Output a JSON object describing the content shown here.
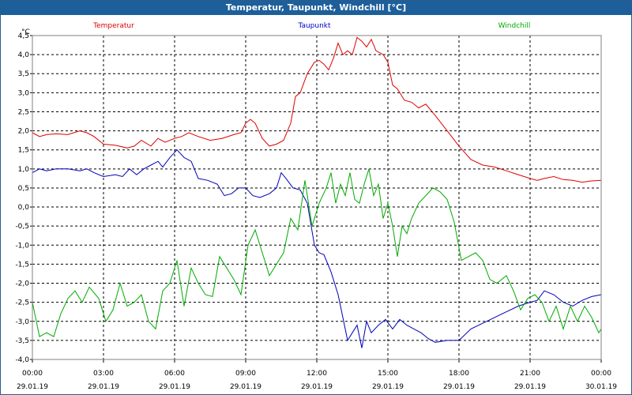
{
  "window": {
    "title": "Temperatur, Taupunkt, Windchill [°C]"
  },
  "chart_data": {
    "type": "line",
    "title": "Temperatur, Taupunkt, Windchill [°C]",
    "ylabel": "°C",
    "ylim": [
      -4.0,
      4.5
    ],
    "xlim": [
      0,
      24
    ],
    "yticks": [
      "4,5",
      "4,0",
      "3,5",
      "3,0",
      "2,5",
      "2,0",
      "1,5",
      "1,0",
      "0,5",
      "0,0",
      "-0,5",
      "-1,0",
      "-1,5",
      "-2,0",
      "-2,5",
      "-3,0",
      "-3,5",
      "-4,0"
    ],
    "xticks": [
      {
        "time": "00:00",
        "date": "29.01.19"
      },
      {
        "time": "03:00",
        "date": "29.01.19"
      },
      {
        "time": "06:00",
        "date": "29.01.19"
      },
      {
        "time": "09:00",
        "date": "29.01.19"
      },
      {
        "time": "12:00",
        "date": "29.01.19"
      },
      {
        "time": "15:00",
        "date": "29.01.19"
      },
      {
        "time": "18:00",
        "date": "29.01.19"
      },
      {
        "time": "21:00",
        "date": "29.01.19"
      },
      {
        "time": "00:00",
        "date": "30.01.19"
      }
    ],
    "grid": true,
    "legend_position": "top",
    "series": [
      {
        "name": "Temperatur",
        "color": "#dd0000",
        "points": [
          [
            0,
            1.95
          ],
          [
            0.3,
            1.85
          ],
          [
            0.6,
            1.9
          ],
          [
            1.0,
            1.92
          ],
          [
            1.5,
            1.9
          ],
          [
            2.0,
            2.0
          ],
          [
            2.3,
            1.95
          ],
          [
            2.6,
            1.85
          ],
          [
            3.0,
            1.65
          ],
          [
            3.5,
            1.62
          ],
          [
            4.0,
            1.55
          ],
          [
            4.3,
            1.6
          ],
          [
            4.6,
            1.75
          ],
          [
            5.0,
            1.6
          ],
          [
            5.3,
            1.8
          ],
          [
            5.6,
            1.7
          ],
          [
            6.0,
            1.8
          ],
          [
            6.3,
            1.85
          ],
          [
            6.6,
            1.95
          ],
          [
            7.0,
            1.85
          ],
          [
            7.5,
            1.75
          ],
          [
            8.0,
            1.8
          ],
          [
            8.5,
            1.9
          ],
          [
            8.8,
            1.95
          ],
          [
            9.0,
            2.2
          ],
          [
            9.2,
            2.3
          ],
          [
            9.4,
            2.2
          ],
          [
            9.7,
            1.8
          ],
          [
            10.0,
            1.6
          ],
          [
            10.3,
            1.65
          ],
          [
            10.6,
            1.75
          ],
          [
            10.9,
            2.2
          ],
          [
            11.1,
            2.9
          ],
          [
            11.3,
            3.0
          ],
          [
            11.6,
            3.5
          ],
          [
            11.9,
            3.8
          ],
          [
            12.1,
            3.85
          ],
          [
            12.3,
            3.75
          ],
          [
            12.5,
            3.6
          ],
          [
            12.7,
            3.9
          ],
          [
            12.9,
            4.3
          ],
          [
            13.1,
            4.0
          ],
          [
            13.3,
            4.1
          ],
          [
            13.5,
            4.0
          ],
          [
            13.7,
            4.45
          ],
          [
            13.9,
            4.35
          ],
          [
            14.1,
            4.2
          ],
          [
            14.3,
            4.4
          ],
          [
            14.5,
            4.1
          ],
          [
            14.8,
            4.0
          ],
          [
            15.0,
            3.8
          ],
          [
            15.2,
            3.2
          ],
          [
            15.4,
            3.1
          ],
          [
            15.7,
            2.8
          ],
          [
            16.0,
            2.75
          ],
          [
            16.3,
            2.6
          ],
          [
            16.6,
            2.7
          ],
          [
            17.0,
            2.4
          ],
          [
            17.5,
            2.0
          ],
          [
            18.0,
            1.6
          ],
          [
            18.5,
            1.25
          ],
          [
            19.0,
            1.1
          ],
          [
            19.5,
            1.05
          ],
          [
            20.0,
            0.95
          ],
          [
            20.5,
            0.85
          ],
          [
            21.0,
            0.75
          ],
          [
            21.3,
            0.7
          ],
          [
            21.6,
            0.75
          ],
          [
            22.0,
            0.8
          ],
          [
            22.4,
            0.72
          ],
          [
            22.8,
            0.7
          ],
          [
            23.2,
            0.65
          ],
          [
            23.5,
            0.68
          ],
          [
            24.0,
            0.7
          ]
        ]
      },
      {
        "name": "Taupunkt",
        "color": "#0000bb",
        "points": [
          [
            0,
            0.9
          ],
          [
            0.3,
            1.0
          ],
          [
            0.6,
            0.95
          ],
          [
            1.0,
            1.0
          ],
          [
            1.5,
            1.0
          ],
          [
            2.0,
            0.95
          ],
          [
            2.3,
            1.0
          ],
          [
            2.6,
            0.9
          ],
          [
            3.0,
            0.8
          ],
          [
            3.5,
            0.85
          ],
          [
            3.8,
            0.8
          ],
          [
            4.1,
            1.0
          ],
          [
            4.4,
            0.85
          ],
          [
            4.7,
            1.0
          ],
          [
            5.0,
            1.1
          ],
          [
            5.3,
            1.2
          ],
          [
            5.5,
            1.05
          ],
          [
            5.8,
            1.3
          ],
          [
            6.1,
            1.5
          ],
          [
            6.4,
            1.3
          ],
          [
            6.7,
            1.2
          ],
          [
            7.0,
            0.75
          ],
          [
            7.4,
            0.7
          ],
          [
            7.8,
            0.6
          ],
          [
            8.1,
            0.3
          ],
          [
            8.4,
            0.35
          ],
          [
            8.7,
            0.5
          ],
          [
            9.0,
            0.5
          ],
          [
            9.3,
            0.3
          ],
          [
            9.6,
            0.25
          ],
          [
            10.0,
            0.35
          ],
          [
            10.3,
            0.5
          ],
          [
            10.5,
            0.9
          ],
          [
            10.7,
            0.75
          ],
          [
            11.0,
            0.5
          ],
          [
            11.3,
            0.45
          ],
          [
            11.6,
            0.1
          ],
          [
            11.9,
            -1.0
          ],
          [
            12.1,
            -1.2
          ],
          [
            12.3,
            -1.25
          ],
          [
            12.6,
            -1.7
          ],
          [
            12.9,
            -2.3
          ],
          [
            13.1,
            -2.9
          ],
          [
            13.3,
            -3.5
          ],
          [
            13.5,
            -3.3
          ],
          [
            13.7,
            -3.1
          ],
          [
            13.9,
            -3.7
          ],
          [
            14.1,
            -3.0
          ],
          [
            14.3,
            -3.3
          ],
          [
            14.6,
            -3.1
          ],
          [
            14.9,
            -2.95
          ],
          [
            15.2,
            -3.2
          ],
          [
            15.5,
            -2.95
          ],
          [
            15.8,
            -3.1
          ],
          [
            16.1,
            -3.2
          ],
          [
            16.4,
            -3.3
          ],
          [
            16.7,
            -3.45
          ],
          [
            17.0,
            -3.55
          ],
          [
            17.5,
            -3.5
          ],
          [
            18.0,
            -3.5
          ],
          [
            18.5,
            -3.2
          ],
          [
            19.0,
            -3.05
          ],
          [
            19.5,
            -2.9
          ],
          [
            20.0,
            -2.75
          ],
          [
            20.5,
            -2.6
          ],
          [
            21.0,
            -2.5
          ],
          [
            21.3,
            -2.45
          ],
          [
            21.6,
            -2.2
          ],
          [
            22.0,
            -2.3
          ],
          [
            22.4,
            -2.5
          ],
          [
            22.8,
            -2.6
          ],
          [
            23.2,
            -2.45
          ],
          [
            23.6,
            -2.35
          ],
          [
            24.0,
            -2.3
          ]
        ]
      },
      {
        "name": "Windchill",
        "color": "#00aa00",
        "points": [
          [
            0,
            -2.5
          ],
          [
            0.3,
            -3.4
          ],
          [
            0.6,
            -3.3
          ],
          [
            0.9,
            -3.4
          ],
          [
            1.2,
            -2.8
          ],
          [
            1.5,
            -2.4
          ],
          [
            1.8,
            -2.2
          ],
          [
            2.1,
            -2.5
          ],
          [
            2.4,
            -2.1
          ],
          [
            2.8,
            -2.4
          ],
          [
            3.1,
            -3.0
          ],
          [
            3.4,
            -2.7
          ],
          [
            3.7,
            -2.0
          ],
          [
            4.0,
            -2.6
          ],
          [
            4.3,
            -2.5
          ],
          [
            4.6,
            -2.3
          ],
          [
            4.9,
            -3.0
          ],
          [
            5.2,
            -3.2
          ],
          [
            5.5,
            -2.2
          ],
          [
            5.8,
            -2.0
          ],
          [
            6.1,
            -1.4
          ],
          [
            6.4,
            -2.6
          ],
          [
            6.7,
            -1.6
          ],
          [
            7.0,
            -2.0
          ],
          [
            7.3,
            -2.3
          ],
          [
            7.6,
            -2.35
          ],
          [
            7.9,
            -1.3
          ],
          [
            8.2,
            -1.6
          ],
          [
            8.5,
            -1.9
          ],
          [
            8.8,
            -2.3
          ],
          [
            9.1,
            -1.0
          ],
          [
            9.4,
            -0.6
          ],
          [
            9.7,
            -1.2
          ],
          [
            10.0,
            -1.8
          ],
          [
            10.3,
            -1.5
          ],
          [
            10.6,
            -1.2
          ],
          [
            10.9,
            -0.3
          ],
          [
            11.2,
            -0.6
          ],
          [
            11.5,
            0.7
          ],
          [
            11.8,
            -0.5
          ],
          [
            12.1,
            0.1
          ],
          [
            12.4,
            0.5
          ],
          [
            12.6,
            0.9
          ],
          [
            12.8,
            0.1
          ],
          [
            13.0,
            0.6
          ],
          [
            13.2,
            0.3
          ],
          [
            13.4,
            0.9
          ],
          [
            13.6,
            0.2
          ],
          [
            13.8,
            0.1
          ],
          [
            14.0,
            0.6
          ],
          [
            14.2,
            1.0
          ],
          [
            14.4,
            0.3
          ],
          [
            14.6,
            0.6
          ],
          [
            14.8,
            -0.3
          ],
          [
            15.0,
            0.1
          ],
          [
            15.2,
            -0.5
          ],
          [
            15.4,
            -1.3
          ],
          [
            15.6,
            -0.5
          ],
          [
            15.8,
            -0.7
          ],
          [
            16.0,
            -0.3
          ],
          [
            16.3,
            0.1
          ],
          [
            16.6,
            0.3
          ],
          [
            16.9,
            0.5
          ],
          [
            17.2,
            0.4
          ],
          [
            17.5,
            0.2
          ],
          [
            17.8,
            -0.4
          ],
          [
            18.1,
            -1.4
          ],
          [
            18.4,
            -1.3
          ],
          [
            18.7,
            -1.2
          ],
          [
            19.0,
            -1.4
          ],
          [
            19.3,
            -1.9
          ],
          [
            19.6,
            -2.0
          ],
          [
            20.0,
            -1.8
          ],
          [
            20.3,
            -2.2
          ],
          [
            20.6,
            -2.7
          ],
          [
            20.9,
            -2.4
          ],
          [
            21.2,
            -2.3
          ],
          [
            21.5,
            -2.5
          ],
          [
            21.8,
            -3.0
          ],
          [
            22.1,
            -2.6
          ],
          [
            22.4,
            -3.2
          ],
          [
            22.7,
            -2.6
          ],
          [
            23.0,
            -3.0
          ],
          [
            23.3,
            -2.6
          ],
          [
            23.6,
            -2.9
          ],
          [
            23.9,
            -3.3
          ],
          [
            24.0,
            -3.2
          ]
        ]
      }
    ]
  }
}
